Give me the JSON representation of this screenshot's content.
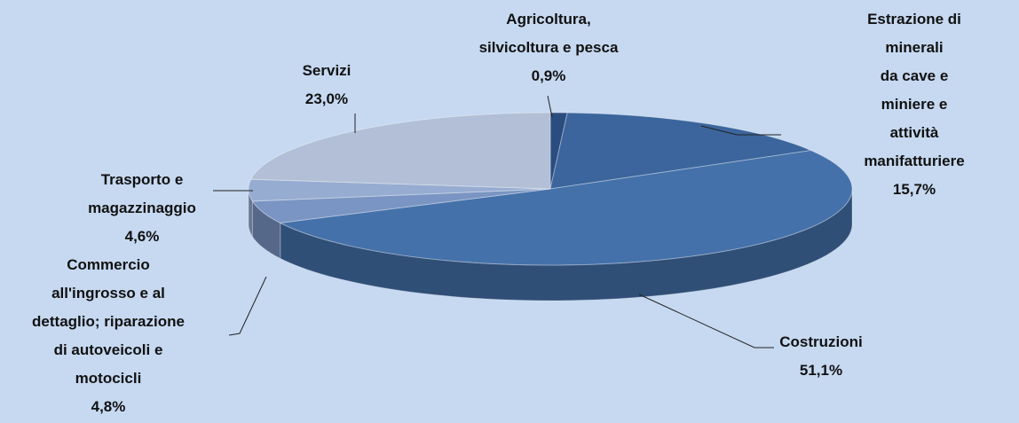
{
  "chart_data": {
    "type": "pie3d",
    "categories": [
      "Agricoltura,\nsilvicoltura e pesca",
      "Estrazione di minerali\nda cave e miniere e\nattività manifatturiere",
      "Costruzioni",
      "Commercio\nall'ingrosso e al\ndettaglio; riparazione\ndi autoveicoli e\nmotocicli",
      "Trasporto e\nmagazzinaggio",
      "Servizi"
    ],
    "values": [
      0.9,
      15.7,
      51.1,
      4.8,
      4.6,
      23.0
    ],
    "value_labels": [
      "0,9%",
      "15,7%",
      "51,1%",
      "4,8%",
      "4,6%",
      "23,0%"
    ],
    "colors": [
      "#2b4c7e",
      "#3b659c",
      "#4571aa",
      "#7a95c3",
      "#97acd1",
      "#b2bfd6"
    ]
  }
}
